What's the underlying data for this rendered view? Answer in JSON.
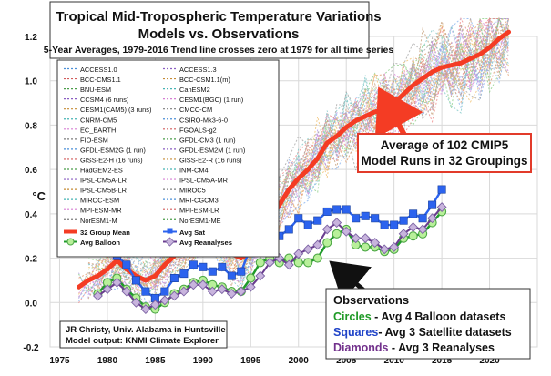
{
  "chart_data": {
    "type": "line",
    "title": "Tropical Mid-Tropospheric Temperature Variations",
    "subtitle": "Models vs. Observations",
    "note": "5-Year Averages, 1979-2016 Trend line crosses zero at 1979 for all time series",
    "ylabel": "°C",
    "xlim": [
      1974,
      2025
    ],
    "ylim": [
      -0.2,
      1.2
    ],
    "grid": true,
    "x_ticks": [
      1975,
      1980,
      1985,
      1990,
      1995,
      2000,
      2005,
      2010,
      2015,
      2020
    ],
    "y_ticks": [
      -0.2,
      0.0,
      0.2,
      0.4,
      0.6,
      0.8,
      1.0,
      1.2
    ],
    "legend_placement": "top-left",
    "model_legend_left": [
      "ACCESS1.0",
      "BCC-CMS1.1",
      "BNU-ESM",
      "CCSM4 (6 runs)",
      "CESM1(CAM5) (3 runs)",
      "CNRM-CM5",
      "EC_EARTH",
      "FIO-ESM",
      "GFDL-ESM2G (1 run)",
      "GISS-E2-H (16 runs)",
      "HadGEM2-ES",
      "IPSL-CM5A-LR",
      "IPSL-CM5B-LR",
      "MIROC-ESM",
      "MPI-ESM-MR",
      "NorESM1-M"
    ],
    "model_legend_right": [
      "ACCESS1.3",
      "BCC-CSM1.1(m)",
      "CanESM2",
      "CESM1(BGC) (1 run)",
      "CMCC-CM",
      "CSIRO-Mk3-6-0",
      "FGOALS-g2",
      "GFDL-CM3 (1 run)",
      "GFDL-ESM2M (1 run)",
      "GISS-E2-R (16 runs)",
      "INM-CM4",
      "IPSL-CM5A-MR",
      "MIROC5",
      "MRI-CGCM3",
      "MPI-ESM-LR",
      "NorESM1-ME"
    ],
    "main_legend": [
      "32 Group Mean",
      "Avg Sat",
      "Avg Balloon",
      "Avg Reanalyses"
    ],
    "colors": {
      "mean": "#f43c24",
      "satellite": "#2c63ee",
      "balloon_line": "#1e9a2a",
      "balloon_fill": "#b8f09a",
      "reanalyses": "#6a3d8f",
      "reanalyses_fill": "#c8b4dd",
      "grid": "#d9d9d9",
      "annotation_border": "#e23b2a",
      "arrow_black": "#111111",
      "legend_green_text": "#1f9a26",
      "legend_blue_text": "#1f43c8",
      "legend_purple_text": "#72318c"
    },
    "annotations": {
      "model_box_line1": "Average of 102 CMIP5",
      "model_box_line2": "Model Runs in 32 Groupings",
      "obs_title": "Observations",
      "obs_circles_key": "Circles",
      "obs_circles_text": " - Avg 4 Balloon datasets",
      "obs_squares_key": "Squares",
      "obs_squares_text": "- Avg 3 Satellite datasets",
      "obs_diamonds_key": "Diamonds",
      "obs_diamonds_text": " - Avg 3 Reanalyses",
      "credit_line1": "JR Christy, Univ. Alabama in Huntsville",
      "credit_line2": "Model output: KNMI Climate Explorer"
    },
    "series": [
      {
        "name": "32 Group Mean",
        "x": [
          1977,
          1978,
          1979,
          1980,
          1981,
          1982,
          1983,
          1984,
          1985,
          1986,
          1987,
          1988,
          1989,
          1990,
          1991,
          1992,
          1993,
          1994,
          1995,
          1996,
          1997,
          1998,
          1999,
          2000,
          2001,
          2002,
          2003,
          2004,
          2005,
          2006,
          2007,
          2008,
          2009,
          2010,
          2011,
          2012,
          2013,
          2014,
          2015,
          2016,
          2017,
          2018,
          2019,
          2020,
          2021,
          2022
        ],
        "values": [
          0.07,
          0.1,
          0.12,
          0.15,
          0.19,
          0.15,
          0.12,
          0.1,
          0.12,
          0.17,
          0.21,
          0.25,
          0.3,
          0.35,
          0.33,
          0.28,
          0.22,
          0.2,
          0.23,
          0.29,
          0.37,
          0.44,
          0.51,
          0.56,
          0.6,
          0.65,
          0.72,
          0.75,
          0.79,
          0.82,
          0.84,
          0.86,
          0.87,
          0.9,
          0.94,
          0.98,
          1.01,
          1.04,
          1.06,
          1.07,
          1.08,
          1.1,
          1.12,
          1.15,
          1.19,
          1.22
        ]
      },
      {
        "name": "Avg Sat",
        "x": [
          1981,
          1982,
          1983,
          1984,
          1985,
          1986,
          1987,
          1988,
          1989,
          1990,
          1991,
          1992,
          1993,
          1994,
          1995,
          1996,
          1997,
          1998,
          1999,
          2000,
          2001,
          2002,
          2003,
          2004,
          2005,
          2006,
          2007,
          2008,
          2009,
          2010,
          2011,
          2012,
          2013,
          2014,
          2015
        ],
        "values": [
          0.21,
          0.17,
          0.1,
          0.05,
          0.02,
          0.05,
          0.11,
          0.13,
          0.17,
          0.16,
          0.14,
          0.16,
          0.12,
          0.14,
          0.25,
          0.32,
          0.33,
          0.3,
          0.33,
          0.38,
          0.35,
          0.37,
          0.41,
          0.42,
          0.42,
          0.38,
          0.39,
          0.38,
          0.35,
          0.35,
          0.37,
          0.4,
          0.38,
          0.44,
          0.51
        ]
      },
      {
        "name": "Avg Balloon",
        "x": [
          1979,
          1980,
          1981,
          1982,
          1983,
          1984,
          1985,
          1986,
          1987,
          1988,
          1989,
          1990,
          1991,
          1992,
          1993,
          1994,
          1995,
          1996,
          1997,
          1998,
          1999,
          2000,
          2001,
          2002,
          2003,
          2004,
          2005,
          2006,
          2007,
          2008,
          2009,
          2010,
          2011,
          2012,
          2013,
          2014,
          2015
        ],
        "values": [
          0.04,
          0.09,
          0.11,
          0.06,
          0.02,
          -0.02,
          -0.03,
          0.0,
          0.04,
          0.06,
          0.09,
          0.1,
          0.08,
          0.07,
          0.05,
          0.05,
          0.11,
          0.18,
          0.2,
          0.18,
          0.2,
          0.18,
          0.18,
          0.2,
          0.27,
          0.31,
          0.33,
          0.26,
          0.25,
          0.25,
          0.23,
          0.24,
          0.29,
          0.3,
          0.31,
          0.36,
          0.41
        ]
      },
      {
        "name": "Avg Reanalyses",
        "x": [
          1979,
          1980,
          1981,
          1982,
          1983,
          1984,
          1985,
          1986,
          1987,
          1988,
          1989,
          1990,
          1991,
          1992,
          1993,
          1994,
          1995,
          1996,
          1997,
          1998,
          1999,
          2000,
          2001,
          2002,
          2003,
          2004,
          2005,
          2006,
          2007,
          2008,
          2009,
          2010,
          2011,
          2012,
          2013,
          2014,
          2015
        ],
        "values": [
          0.03,
          0.06,
          0.09,
          0.05,
          0.0,
          -0.03,
          -0.01,
          0.01,
          0.03,
          0.05,
          0.08,
          0.08,
          0.05,
          0.06,
          0.04,
          0.05,
          0.07,
          0.12,
          0.18,
          0.2,
          0.17,
          0.22,
          0.24,
          0.26,
          0.33,
          0.36,
          0.32,
          0.29,
          0.29,
          0.27,
          0.24,
          0.25,
          0.31,
          0.34,
          0.33,
          0.38,
          0.43
        ]
      }
    ]
  }
}
